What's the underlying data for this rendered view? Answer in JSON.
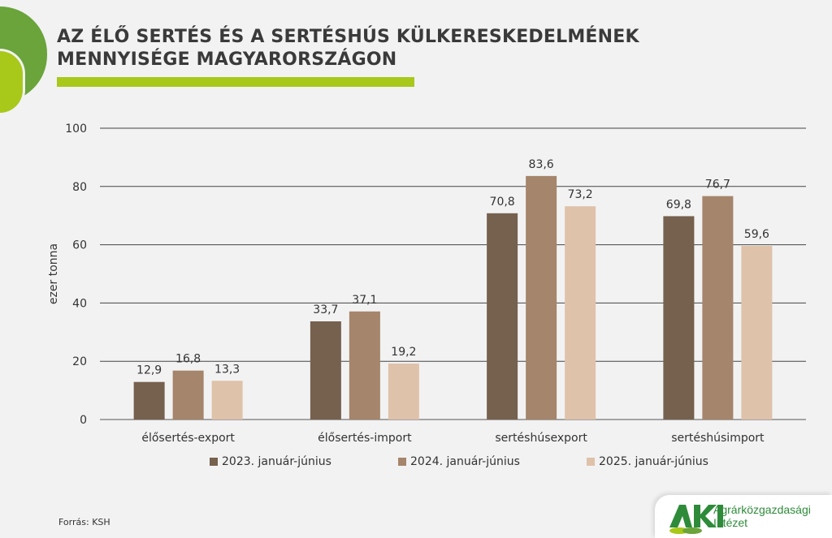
{
  "title_lines": [
    "AZ ÉLŐ SERTÉS ÉS A SERTÉSHÚS KÜLKERESKEDELMÉNEK",
    "MENNYISÉGE MAGYARORSZÁGON"
  ],
  "source": "Forrás: KSH",
  "logo": {
    "mark": "AKI",
    "line1": "Agrárközgazdasági",
    "line2": "Intézet"
  },
  "colors": {
    "background": "#f2f2f2",
    "accent_green": "#a8c81a",
    "dark_green": "#6aa43a"
  },
  "chart_data": {
    "type": "bar",
    "ylabel": "ezer tonna",
    "ylim": [
      0,
      100
    ],
    "yticks": [
      0,
      20,
      40,
      60,
      80,
      100
    ],
    "grid": true,
    "legend_position": "bottom",
    "categories": [
      "élősertés-export",
      "élősertés-import",
      "sertéshúsexport",
      "sertéshúsimport"
    ],
    "series": [
      {
        "name": "2023. január-június",
        "color": "#76604e",
        "values": [
          12.9,
          33.7,
          70.8,
          69.8
        ],
        "labels": [
          "12,9",
          "33,7",
          "70,8",
          "69,8"
        ]
      },
      {
        "name": "2024. január-június",
        "color": "#a5856b",
        "values": [
          16.8,
          37.1,
          83.6,
          76.7
        ],
        "labels": [
          "16,8",
          "37,1",
          "83,6",
          "76,7"
        ]
      },
      {
        "name": "2025. január-június",
        "color": "#dfc2aa",
        "values": [
          13.3,
          19.2,
          73.2,
          59.6
        ],
        "labels": [
          "13,3",
          "19,2",
          "73,2",
          "59,6"
        ]
      }
    ]
  }
}
